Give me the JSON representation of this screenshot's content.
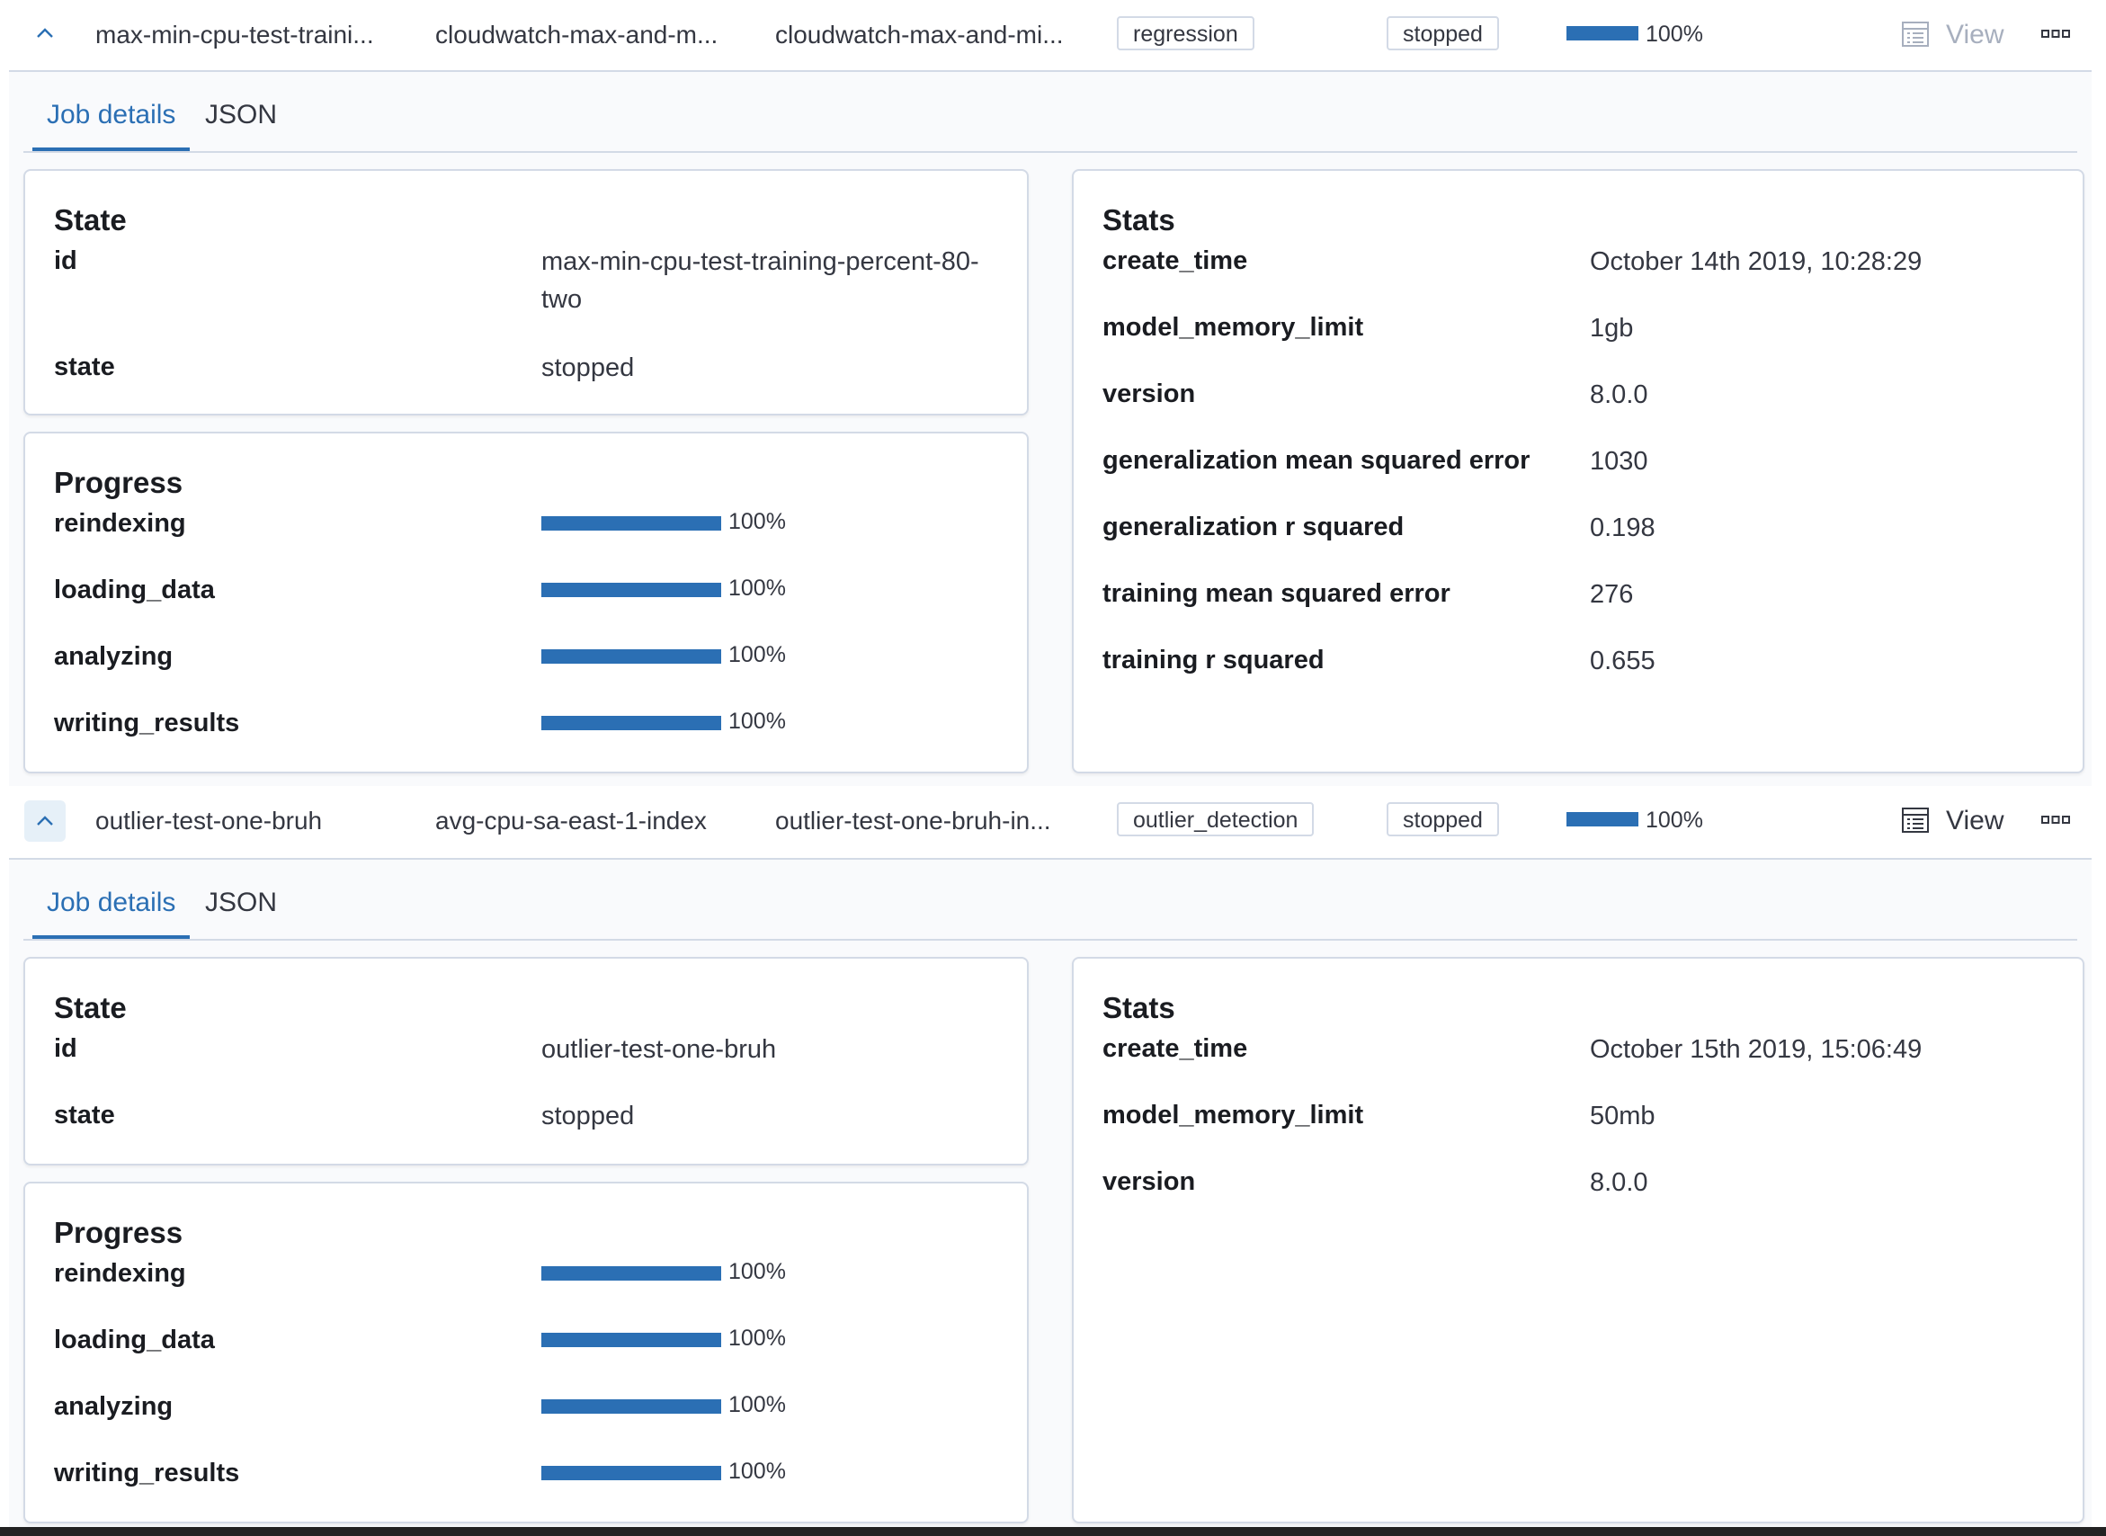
{
  "jobs": [
    {
      "id_short": "max-min-cpu-test-traini...",
      "source_index": "cloudwatch-max-and-m...",
      "dest_index": "cloudwatch-max-and-mi...",
      "type": "regression",
      "status": "stopped",
      "progress": 1.0,
      "progress_label": "100%",
      "view_label": "View",
      "view_enabled": false,
      "tabs": [
        "Job details",
        "JSON"
      ],
      "state_panel": {
        "title": "State",
        "items": [
          {
            "key": "id",
            "value": "max-min-cpu-test-training-percent-80-two"
          },
          {
            "key": "state",
            "value": "stopped"
          }
        ]
      },
      "progress_panel": {
        "title": "Progress",
        "items": [
          {
            "key": "reindexing",
            "value": 1.0,
            "label": "100%"
          },
          {
            "key": "loading_data",
            "value": 1.0,
            "label": "100%"
          },
          {
            "key": "analyzing",
            "value": 1.0,
            "label": "100%"
          },
          {
            "key": "writing_results",
            "value": 1.0,
            "label": "100%"
          }
        ]
      },
      "stats_panel": {
        "title": "Stats",
        "items": [
          {
            "key": "create_time",
            "value": "October 14th 2019, 10:28:29"
          },
          {
            "key": "model_memory_limit",
            "value": "1gb"
          },
          {
            "key": "version",
            "value": "8.0.0"
          },
          {
            "key": "generalization mean squared error",
            "value": "1030"
          },
          {
            "key": "generalization r squared",
            "value": "0.198"
          },
          {
            "key": "training mean squared error",
            "value": "276"
          },
          {
            "key": "training r squared",
            "value": "0.655"
          }
        ]
      }
    },
    {
      "id_short": "outlier-test-one-bruh",
      "source_index": "avg-cpu-sa-east-1-index",
      "dest_index": "outlier-test-one-bruh-in...",
      "type": "outlier_detection",
      "status": "stopped",
      "progress": 1.0,
      "progress_label": "100%",
      "view_label": "View",
      "view_enabled": true,
      "tabs": [
        "Job details",
        "JSON"
      ],
      "state_panel": {
        "title": "State",
        "items": [
          {
            "key": "id",
            "value": "outlier-test-one-bruh"
          },
          {
            "key": "state",
            "value": "stopped"
          }
        ]
      },
      "progress_panel": {
        "title": "Progress",
        "items": [
          {
            "key": "reindexing",
            "value": 1.0,
            "label": "100%"
          },
          {
            "key": "loading_data",
            "value": 1.0,
            "label": "100%"
          },
          {
            "key": "analyzing",
            "value": 1.0,
            "label": "100%"
          },
          {
            "key": "writing_results",
            "value": 1.0,
            "label": "100%"
          }
        ]
      },
      "stats_panel": {
        "title": "Stats",
        "items": [
          {
            "key": "create_time",
            "value": "October 15th 2019, 15:06:49"
          },
          {
            "key": "model_memory_limit",
            "value": "50mb"
          },
          {
            "key": "version",
            "value": "8.0.0"
          }
        ]
      }
    }
  ],
  "icons": {
    "collapse": "chevron-up-icon",
    "view": "table-view-icon",
    "more": "more-dots-icon"
  },
  "colors": {
    "accent": "#2b6fb4",
    "border": "#d3dae6",
    "panel_bg": "#f9fafc"
  }
}
